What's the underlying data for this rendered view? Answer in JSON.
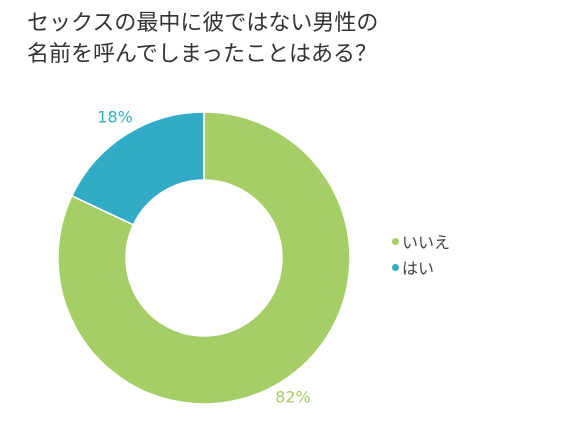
{
  "title": {
    "line1": "セックスの最中に彼ではない男性の",
    "line2": "名前を呼んでしまったことはある？"
  },
  "chart_data": {
    "type": "pie",
    "variant": "donut",
    "title": "セックスの最中に彼ではない男性の名前を呼んでしまったことはある？",
    "categories": [
      "いいえ",
      "はい"
    ],
    "values": [
      82,
      18
    ],
    "labels": [
      "82%",
      "18%"
    ],
    "colors": [
      "#A5CE67",
      "#31ABC6"
    ],
    "legend": "right"
  }
}
